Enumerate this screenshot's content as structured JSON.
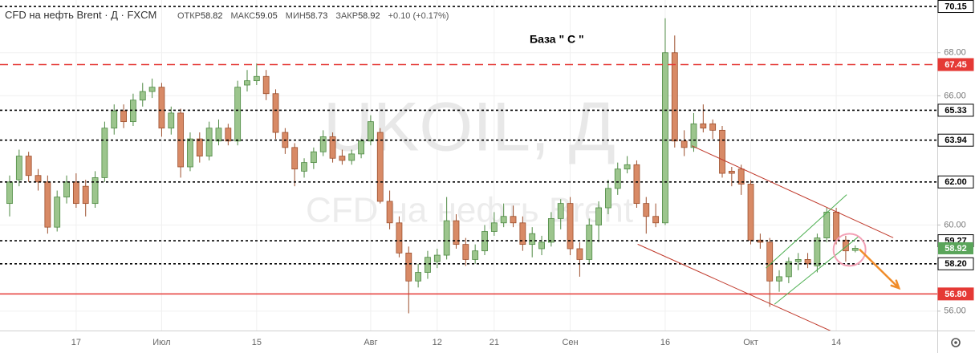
{
  "chart_data": {
    "type": "candlestick",
    "title": "CFD на нефть Brent · Д · FXCM",
    "stats": [
      {
        "label": "ОТКР",
        "value": 58.82
      },
      {
        "label": "МАКС",
        "value": 59.05
      },
      {
        "label": "МИН",
        "value": 58.73
      },
      {
        "label": "ЗАКР",
        "value": 58.92
      }
    ],
    "change": "+0.10 (+0.17%)",
    "watermark": [
      "UKOIL, Д",
      "CFD на нефть Brent"
    ],
    "annotation": "База  \" С \"",
    "categories": [
      null,
      null,
      null,
      null,
      null,
      null,
      null,
      "17",
      null,
      null,
      null,
      null,
      null,
      null,
      null,
      null,
      "Июл",
      null,
      null,
      null,
      null,
      null,
      null,
      null,
      null,
      null,
      "15",
      null,
      null,
      null,
      null,
      null,
      null,
      null,
      null,
      null,
      null,
      null,
      "Авг",
      null,
      null,
      null,
      null,
      null,
      null,
      "12",
      null,
      null,
      null,
      null,
      null,
      "21",
      null,
      null,
      null,
      null,
      null,
      null,
      null,
      "Сен",
      null,
      null,
      null,
      null,
      null,
      null,
      null,
      null,
      null,
      "16",
      null,
      null,
      null,
      null,
      null,
      null,
      null,
      null,
      "Окт",
      null,
      null,
      null,
      null,
      null,
      null,
      null,
      null,
      "14",
      null,
      null
    ],
    "ohlc": [
      [
        61.0,
        62.3,
        60.4,
        62.0
      ],
      [
        62.1,
        63.5,
        61.8,
        63.2
      ],
      [
        63.2,
        63.4,
        62.0,
        62.3
      ],
      [
        62.3,
        62.6,
        61.6,
        62.0
      ],
      [
        62.0,
        62.3,
        59.6,
        59.9
      ],
      [
        59.9,
        61.6,
        59.7,
        61.3
      ],
      [
        61.3,
        62.3,
        61.0,
        62.0
      ],
      [
        62.0,
        62.4,
        60.8,
        61.0
      ],
      [
        61.8,
        62.1,
        60.4,
        61.0
      ],
      [
        61.0,
        62.5,
        60.8,
        62.2
      ],
      [
        62.2,
        64.8,
        62.0,
        64.5
      ],
      [
        64.5,
        65.6,
        64.2,
        65.3
      ],
      [
        65.3,
        65.6,
        64.5,
        64.8
      ],
      [
        64.8,
        66.1,
        64.6,
        65.8
      ],
      [
        65.8,
        66.6,
        65.5,
        66.2
      ],
      [
        66.2,
        66.8,
        65.9,
        66.4
      ],
      [
        66.4,
        66.6,
        64.1,
        64.5
      ],
      [
        64.5,
        65.5,
        64.2,
        65.2
      ],
      [
        65.2,
        65.4,
        62.2,
        62.7
      ],
      [
        62.7,
        64.3,
        62.5,
        64.0
      ],
      [
        64.0,
        64.3,
        62.9,
        63.2
      ],
      [
        63.2,
        64.8,
        63.0,
        64.5
      ],
      [
        63.9,
        64.9,
        63.7,
        64.5
      ],
      [
        64.5,
        64.7,
        63.7,
        63.9
      ],
      [
        63.9,
        66.7,
        63.7,
        66.4
      ],
      [
        66.5,
        67.2,
        66.2,
        66.7
      ],
      [
        66.7,
        67.5,
        66.5,
        66.9
      ],
      [
        66.9,
        67.2,
        65.8,
        66.1
      ],
      [
        66.1,
        66.3,
        64.0,
        64.3
      ],
      [
        64.3,
        64.5,
        63.3,
        63.6
      ],
      [
        63.6,
        63.8,
        61.8,
        62.6
      ],
      [
        62.5,
        63.1,
        62.2,
        62.9
      ],
      [
        62.9,
        63.6,
        62.6,
        63.4
      ],
      [
        63.4,
        64.4,
        63.2,
        64.1
      ],
      [
        64.1,
        64.3,
        62.9,
        63.1
      ],
      [
        63.2,
        63.5,
        62.8,
        63.0
      ],
      [
        63.0,
        63.5,
        62.8,
        63.3
      ],
      [
        63.3,
        64.0,
        63.1,
        63.9
      ],
      [
        63.9,
        65.1,
        63.7,
        64.8
      ],
      [
        64.3,
        64.5,
        61.0,
        61.1
      ],
      [
        61.1,
        61.6,
        59.8,
        60.1
      ],
      [
        60.1,
        60.4,
        58.5,
        58.7
      ],
      [
        58.7,
        59.0,
        55.9,
        57.4
      ],
      [
        57.4,
        58.2,
        57.1,
        57.8
      ],
      [
        57.8,
        58.8,
        57.5,
        58.5
      ],
      [
        58.3,
        58.9,
        58.0,
        58.6
      ],
      [
        58.6,
        61.3,
        58.4,
        60.2
      ],
      [
        60.2,
        60.5,
        58.9,
        59.1
      ],
      [
        59.1,
        59.4,
        58.1,
        58.4
      ],
      [
        58.4,
        59.1,
        58.2,
        58.8
      ],
      [
        58.8,
        60.0,
        58.6,
        59.7
      ],
      [
        59.7,
        60.6,
        59.5,
        60.1
      ],
      [
        60.1,
        61.0,
        59.9,
        60.4
      ],
      [
        60.4,
        60.9,
        59.9,
        60.1
      ],
      [
        60.1,
        60.4,
        58.8,
        59.1
      ],
      [
        59.1,
        59.9,
        58.5,
        59.6
      ],
      [
        58.9,
        59.5,
        58.6,
        59.2
      ],
      [
        59.2,
        60.6,
        59.0,
        60.3
      ],
      [
        60.3,
        61.2,
        59.8,
        61.0
      ],
      [
        61.0,
        61.3,
        58.6,
        58.9
      ],
      [
        58.9,
        59.2,
        57.6,
        58.4
      ],
      [
        58.4,
        60.3,
        58.2,
        60.0
      ],
      [
        60.0,
        61.1,
        59.2,
        60.8
      ],
      [
        60.8,
        62.1,
        60.5,
        61.7
      ],
      [
        61.7,
        62.9,
        61.4,
        62.6
      ],
      [
        62.6,
        63.2,
        62.4,
        62.8
      ],
      [
        62.8,
        63.0,
        60.8,
        61.0
      ],
      [
        61.0,
        61.3,
        59.6,
        60.4
      ],
      [
        60.4,
        61.0,
        59.9,
        60.1
      ],
      [
        60.1,
        69.6,
        60.0,
        68.0
      ],
      [
        68.0,
        68.8,
        63.6,
        63.9
      ],
      [
        63.9,
        64.4,
        63.2,
        63.6
      ],
      [
        63.6,
        65.2,
        63.4,
        64.7
      ],
      [
        64.7,
        65.6,
        64.3,
        64.5
      ],
      [
        64.7,
        64.9,
        64.0,
        64.4
      ],
      [
        64.4,
        64.6,
        62.2,
        62.4
      ],
      [
        62.5,
        62.7,
        61.8,
        62.4
      ],
      [
        62.6,
        62.8,
        61.4,
        61.9
      ],
      [
        61.9,
        62.1,
        59.1,
        59.3
      ],
      [
        59.3,
        59.6,
        58.9,
        59.2
      ],
      [
        59.2,
        59.4,
        56.2,
        57.4
      ],
      [
        57.4,
        57.9,
        56.9,
        57.6
      ],
      [
        57.6,
        58.5,
        57.3,
        58.3
      ],
      [
        58.3,
        58.7,
        57.9,
        58.4
      ],
      [
        58.4,
        58.7,
        58.0,
        58.2
      ],
      [
        58.1,
        59.6,
        57.8,
        59.4
      ],
      [
        59.4,
        60.8,
        59.2,
        60.6
      ],
      [
        60.6,
        60.8,
        59.1,
        59.3
      ],
      [
        59.3,
        59.5,
        58.3,
        58.8
      ],
      [
        58.82,
        59.05,
        58.73,
        58.92
      ]
    ],
    "up_color": "#9cc58d",
    "up_border": "#4e8a43",
    "down_color": "#d88a66",
    "down_border": "#9c4f2d",
    "ylim": [
      55.1,
      70.3
    ],
    "yticks": [
      {
        "value": 56,
        "label": "56.00"
      },
      {
        "value": 60,
        "label": "60.00"
      },
      {
        "value": 66,
        "label": "66.00"
      },
      {
        "value": 68,
        "label": "68.00"
      }
    ],
    "grid": true,
    "levels": [
      {
        "value": 70.15,
        "style": "dotted",
        "color": "#000000"
      },
      {
        "value": 67.45,
        "style": "dashed",
        "color": "#e53935"
      },
      {
        "value": 65.33,
        "style": "dotted",
        "color": "#000000"
      },
      {
        "value": 63.94,
        "style": "dotted",
        "color": "#000000"
      },
      {
        "value": 62,
        "label": "62.00",
        "style": "dotted",
        "color": "#000000"
      },
      {
        "value": 59.27,
        "style": "dotted",
        "color": "#000000"
      },
      {
        "value": 58.2,
        "label": "58.20",
        "style": "dotted",
        "color": "#000000"
      },
      {
        "value": 56.8,
        "label": "56.80",
        "style": "solid",
        "color": "#e53935"
      }
    ],
    "last_price": 58.92,
    "last_color": "#5aa55a",
    "trend_lines": [
      {
        "x": [
          71.8,
          93.0
        ],
        "y": [
          63.68,
          59.41
        ],
        "color": "#c0392b"
      },
      {
        "x": [
          66.1,
          87.7
        ],
        "y": [
          59.11,
          54.83
        ],
        "color": "#c0392b"
      },
      {
        "x": [
          80.5,
          89.4
        ],
        "y": [
          56.32,
          59.48
        ],
        "color": "#4caf50"
      },
      {
        "x": [
          79.6,
          88.1
        ],
        "y": [
          58.0,
          61.41
        ],
        "color": "#4caf50"
      }
    ],
    "arrow": {
      "x": [
        89.5,
        93.6
      ],
      "y": [
        58.85,
        57.07
      ],
      "color": "#f08c2a"
    },
    "highlight": {
      "x": 88.4,
      "y": 58.85,
      "color": "#f3a0b5"
    }
  }
}
